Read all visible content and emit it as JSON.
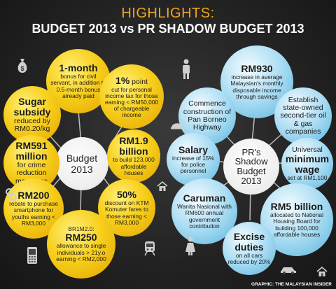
{
  "heading": {
    "line1": "HIGHLIGHTS:",
    "line2": "BUDGET 2013 vs PR SHADOW BUDGET 2013"
  },
  "budget": {
    "center": [
      "Budget",
      "2013"
    ],
    "items": [
      {
        "head": "1-month",
        "text": "bonus for civil servant, in addition to 0.5-month bonus already paid"
      },
      {
        "head": "1%",
        "head_suffix": " point",
        "text": "cut for personal income tax for those earning < RM50,000 of chargeable income"
      },
      {
        "head": "Sugar subsidy",
        "text": "reduced by RM0.20/kg"
      },
      {
        "head": "RM591 million",
        "text": "for crime reduction measures"
      },
      {
        "head": "RM1.9 billion",
        "text": "to build 123,000 affordable houses"
      },
      {
        "head": "RM200",
        "text": "rebate to purchase smartphone for youths earning < RM3,000"
      },
      {
        "head": "50%",
        "text": "discount on KTM Komuter fares to those earning < RM3,000"
      },
      {
        "pre": "BR1M2.0:",
        "head": "RM250",
        "text": "allowance to single individuals > 21y.o earning < RM2,000"
      }
    ]
  },
  "shadow": {
    "center": [
      "PR's",
      "Shadow",
      "Budget",
      "2013"
    ],
    "items": [
      {
        "head": "RM930",
        "text": "increase in average Malaysian's monthly disposable income through savings"
      },
      {
        "head": "",
        "text": "Commence construction of Pan Borneo Highway"
      },
      {
        "head": "",
        "text": "Establish state-owned second-tier oil & gas companies"
      },
      {
        "head": "Salary",
        "text": "increase of 15% for police personnel"
      },
      {
        "pre": "Universal",
        "head": "minimum wage",
        "text": "set at RM1,100"
      },
      {
        "head": "Caruman",
        "text": "Wanita Nasional with RM600 annual government contribution"
      },
      {
        "head": "RM5 billion",
        "text": "allocated to National Housing Board for building 100,000 affordable houses"
      },
      {
        "head": "Excise duties",
        "text": "on all cars reduced by 20%"
      }
    ]
  },
  "credit": "GRAPHIC: THE MALAYSIAN INSIDER",
  "icons": [
    "money-bag-icon",
    "handcuff-icon",
    "phone-icon",
    "train-icon",
    "house-icon",
    "person-icon",
    "woman-icon",
    "helmet-icon",
    "house-icon",
    "car-icon"
  ],
  "colors": {
    "accent": "#f2a51c",
    "yellow": "#f7cf1c",
    "blue": "#a9dcf3"
  }
}
